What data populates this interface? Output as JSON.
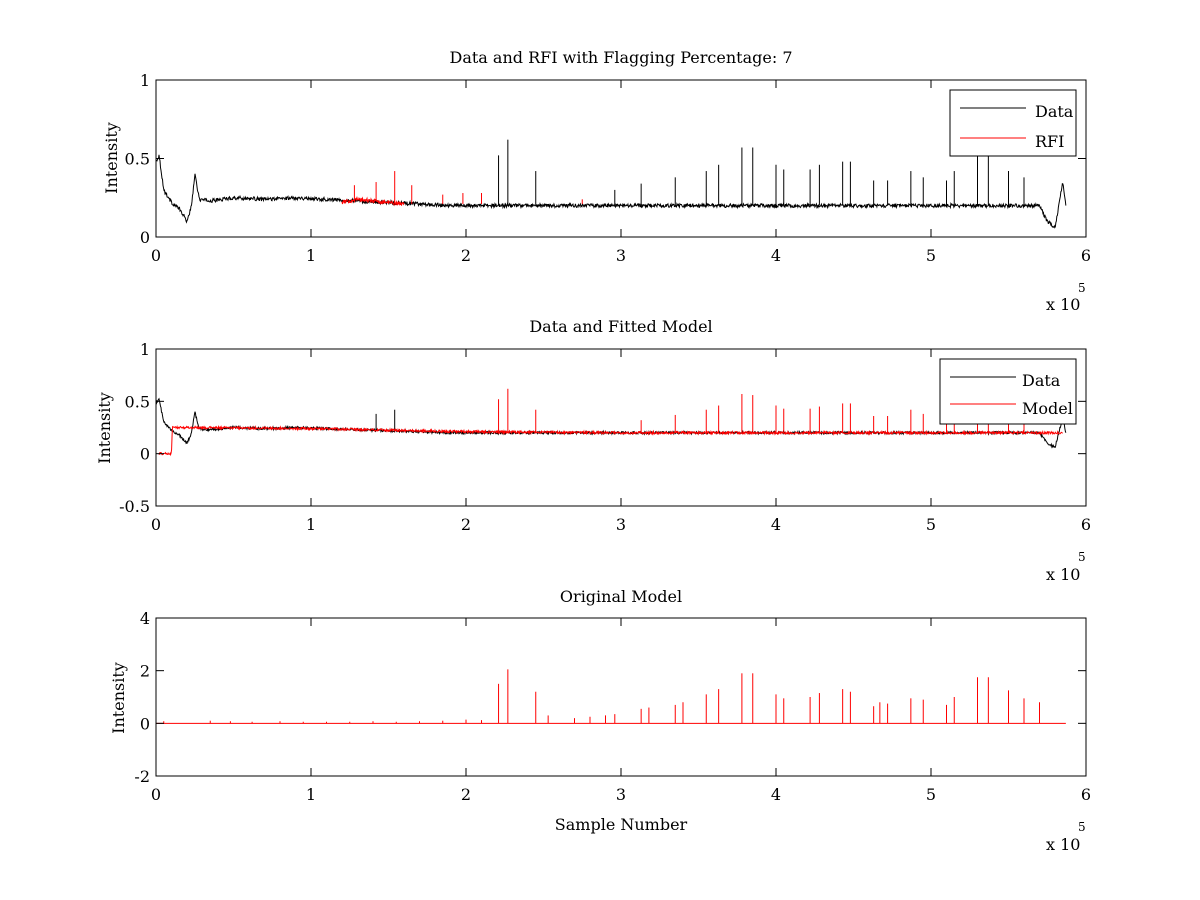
{
  "chart_data": [
    {
      "type": "line",
      "title": "Data and RFI with Flagging Percentage: 7",
      "xlabel": "",
      "ylabel": "Intensity",
      "xlim": [
        0,
        600000
      ],
      "ylim": [
        0,
        1
      ],
      "x_ticks": [
        0,
        100000,
        200000,
        300000,
        400000,
        500000,
        600000
      ],
      "x_tick_labels": [
        "0",
        "1",
        "2",
        "3",
        "4",
        "5",
        "6"
      ],
      "x_exponent": {
        "base": "x 10",
        "power": "5"
      },
      "y_ticks": [
        0,
        0.5,
        1
      ],
      "y_tick_labels": [
        "0",
        "0.5",
        "1"
      ],
      "grid": false,
      "legend_position": "top-right",
      "series": [
        {
          "name": "Data",
          "color": "#000000",
          "x": [
            0,
            2000,
            5000,
            10000,
            15000,
            20000,
            23000,
            25000,
            28000,
            35000,
            50000,
            70000,
            90000,
            110000,
            130000,
            150000,
            170000,
            190000,
            210000,
            250000,
            300000,
            350000,
            400000,
            450000,
            500000,
            550000,
            570000,
            575000,
            580000,
            585000,
            587000
          ],
          "values": [
            0.48,
            0.52,
            0.3,
            0.22,
            0.18,
            0.1,
            0.2,
            0.4,
            0.24,
            0.23,
            0.25,
            0.24,
            0.25,
            0.24,
            0.23,
            0.22,
            0.21,
            0.2,
            0.2,
            0.2,
            0.2,
            0.2,
            0.2,
            0.2,
            0.2,
            0.2,
            0.2,
            0.1,
            0.06,
            0.35,
            0.2
          ],
          "spikes": [
            {
              "x": 221000,
              "y": 0.52
            },
            {
              "x": 227000,
              "y": 0.62
            },
            {
              "x": 245000,
              "y": 0.42
            },
            {
              "x": 296000,
              "y": 0.3
            },
            {
              "x": 313000,
              "y": 0.34
            },
            {
              "x": 335000,
              "y": 0.38
            },
            {
              "x": 355000,
              "y": 0.42
            },
            {
              "x": 363000,
              "y": 0.46
            },
            {
              "x": 378000,
              "y": 0.57
            },
            {
              "x": 385000,
              "y": 0.57
            },
            {
              "x": 400000,
              "y": 0.46
            },
            {
              "x": 405000,
              "y": 0.43
            },
            {
              "x": 422000,
              "y": 0.43
            },
            {
              "x": 428000,
              "y": 0.46
            },
            {
              "x": 443000,
              "y": 0.48
            },
            {
              "x": 448000,
              "y": 0.48
            },
            {
              "x": 463000,
              "y": 0.36
            },
            {
              "x": 472000,
              "y": 0.36
            },
            {
              "x": 487000,
              "y": 0.42
            },
            {
              "x": 495000,
              "y": 0.38
            },
            {
              "x": 510000,
              "y": 0.36
            },
            {
              "x": 515000,
              "y": 0.42
            },
            {
              "x": 530000,
              "y": 0.52
            },
            {
              "x": 537000,
              "y": 0.52
            },
            {
              "x": 550000,
              "y": 0.42
            },
            {
              "x": 560000,
              "y": 0.38
            }
          ]
        },
        {
          "name": "RFI",
          "color": "#ff0000",
          "x": [
            120000,
            130000,
            140000,
            150000,
            160000
          ],
          "values": [
            0.22,
            0.24,
            0.23,
            0.22,
            0.21
          ],
          "spikes": [
            {
              "x": 128000,
              "y": 0.33
            },
            {
              "x": 142000,
              "y": 0.35
            },
            {
              "x": 154000,
              "y": 0.42
            },
            {
              "x": 165000,
              "y": 0.33
            },
            {
              "x": 185000,
              "y": 0.27
            },
            {
              "x": 198000,
              "y": 0.28
            },
            {
              "x": 210000,
              "y": 0.28
            },
            {
              "x": 275000,
              "y": 0.24
            }
          ]
        }
      ]
    },
    {
      "type": "line",
      "title": "Data and Fitted Model",
      "xlabel": "",
      "ylabel": "Intensity",
      "xlim": [
        0,
        600000
      ],
      "ylim": [
        -0.5,
        1
      ],
      "x_ticks": [
        0,
        100000,
        200000,
        300000,
        400000,
        500000,
        600000
      ],
      "x_tick_labels": [
        "0",
        "1",
        "2",
        "3",
        "4",
        "5",
        "6"
      ],
      "x_exponent": {
        "base": "x 10",
        "power": "5"
      },
      "y_ticks": [
        -0.5,
        0,
        0.5,
        1
      ],
      "y_tick_labels": [
        "-0.5",
        "0",
        "0.5",
        "1"
      ],
      "grid": false,
      "legend_position": "top-right",
      "series": [
        {
          "name": "Data",
          "color": "#000000",
          "x": [
            0,
            2000,
            5000,
            10000,
            15000,
            20000,
            23000,
            25000,
            28000,
            35000,
            50000,
            70000,
            90000,
            110000,
            130000,
            150000,
            170000,
            190000,
            210000,
            250000,
            300000,
            350000,
            400000,
            450000,
            500000,
            550000,
            570000,
            575000,
            580000,
            585000,
            587000
          ],
          "values": [
            0.48,
            0.52,
            0.3,
            0.22,
            0.18,
            0.1,
            0.2,
            0.4,
            0.24,
            0.23,
            0.25,
            0.24,
            0.25,
            0.24,
            0.23,
            0.22,
            0.21,
            0.2,
            0.2,
            0.2,
            0.2,
            0.2,
            0.2,
            0.2,
            0.2,
            0.2,
            0.2,
            0.1,
            0.06,
            0.35,
            0.2
          ],
          "spikes": [
            {
              "x": 142000,
              "y": 0.38
            },
            {
              "x": 154000,
              "y": 0.42
            }
          ]
        },
        {
          "name": "Model",
          "color": "#ff0000",
          "x": [
            2000,
            8000,
            10000,
            10500,
            20000,
            100000,
            200000,
            300000,
            400000,
            500000,
            585000
          ],
          "values": [
            0.0,
            0.0,
            0.0,
            0.25,
            0.25,
            0.24,
            0.21,
            0.2,
            0.2,
            0.2,
            0.2
          ],
          "spikes": [
            {
              "x": 221000,
              "y": 0.52
            },
            {
              "x": 227000,
              "y": 0.62
            },
            {
              "x": 245000,
              "y": 0.42
            },
            {
              "x": 313000,
              "y": 0.32
            },
            {
              "x": 335000,
              "y": 0.37
            },
            {
              "x": 355000,
              "y": 0.42
            },
            {
              "x": 363000,
              "y": 0.46
            },
            {
              "x": 378000,
              "y": 0.57
            },
            {
              "x": 385000,
              "y": 0.56
            },
            {
              "x": 400000,
              "y": 0.46
            },
            {
              "x": 405000,
              "y": 0.43
            },
            {
              "x": 422000,
              "y": 0.43
            },
            {
              "x": 428000,
              "y": 0.45
            },
            {
              "x": 443000,
              "y": 0.48
            },
            {
              "x": 448000,
              "y": 0.48
            },
            {
              "x": 463000,
              "y": 0.36
            },
            {
              "x": 472000,
              "y": 0.36
            },
            {
              "x": 487000,
              "y": 0.42
            },
            {
              "x": 495000,
              "y": 0.38
            },
            {
              "x": 510000,
              "y": 0.36
            },
            {
              "x": 515000,
              "y": 0.4
            },
            {
              "x": 530000,
              "y": 0.5
            },
            {
              "x": 537000,
              "y": 0.52
            },
            {
              "x": 550000,
              "y": 0.4
            },
            {
              "x": 560000,
              "y": 0.36
            }
          ]
        }
      ]
    },
    {
      "type": "line",
      "title": "Original Model",
      "xlabel": "Sample Number",
      "ylabel": "Intensity",
      "xlim": [
        0,
        600000
      ],
      "ylim": [
        -2,
        4
      ],
      "x_ticks": [
        0,
        100000,
        200000,
        300000,
        400000,
        500000,
        600000
      ],
      "x_tick_labels": [
        "0",
        "1",
        "2",
        "3",
        "4",
        "5",
        "6"
      ],
      "x_exponent": {
        "base": "x 10",
        "power": "5"
      },
      "y_ticks": [
        -2,
        0,
        2,
        4
      ],
      "y_tick_labels": [
        "-2",
        "0",
        "2",
        "4"
      ],
      "grid": false,
      "legend_position": "none",
      "series": [
        {
          "color": "#ff0000",
          "x": [
            0,
            587000
          ],
          "values": [
            0,
            0
          ],
          "spikes": [
            {
              "x": 5000,
              "y": 0.08
            },
            {
              "x": 35000,
              "y": 0.1
            },
            {
              "x": 48000,
              "y": 0.08
            },
            {
              "x": 62000,
              "y": 0.06
            },
            {
              "x": 80000,
              "y": 0.08
            },
            {
              "x": 95000,
              "y": 0.06
            },
            {
              "x": 110000,
              "y": 0.06
            },
            {
              "x": 125000,
              "y": 0.06
            },
            {
              "x": 140000,
              "y": 0.08
            },
            {
              "x": 155000,
              "y": 0.06
            },
            {
              "x": 170000,
              "y": 0.08
            },
            {
              "x": 185000,
              "y": 0.1
            },
            {
              "x": 200000,
              "y": 0.14
            },
            {
              "x": 210000,
              "y": 0.12
            },
            {
              "x": 221000,
              "y": 1.5
            },
            {
              "x": 227000,
              "y": 2.05
            },
            {
              "x": 245000,
              "y": 1.2
            },
            {
              "x": 253000,
              "y": 0.3
            },
            {
              "x": 270000,
              "y": 0.2
            },
            {
              "x": 280000,
              "y": 0.25
            },
            {
              "x": 290000,
              "y": 0.3
            },
            {
              "x": 296000,
              "y": 0.35
            },
            {
              "x": 313000,
              "y": 0.55
            },
            {
              "x": 318000,
              "y": 0.6
            },
            {
              "x": 335000,
              "y": 0.7
            },
            {
              "x": 340000,
              "y": 0.8
            },
            {
              "x": 355000,
              "y": 1.1
            },
            {
              "x": 363000,
              "y": 1.3
            },
            {
              "x": 378000,
              "y": 1.9
            },
            {
              "x": 385000,
              "y": 1.9
            },
            {
              "x": 400000,
              "y": 1.1
            },
            {
              "x": 405000,
              "y": 0.95
            },
            {
              "x": 422000,
              "y": 1.0
            },
            {
              "x": 428000,
              "y": 1.15
            },
            {
              "x": 443000,
              "y": 1.3
            },
            {
              "x": 448000,
              "y": 1.2
            },
            {
              "x": 463000,
              "y": 0.65
            },
            {
              "x": 467000,
              "y": 0.8
            },
            {
              "x": 472000,
              "y": 0.75
            },
            {
              "x": 487000,
              "y": 0.95
            },
            {
              "x": 495000,
              "y": 0.9
            },
            {
              "x": 510000,
              "y": 0.7
            },
            {
              "x": 515000,
              "y": 1.0
            },
            {
              "x": 530000,
              "y": 1.75
            },
            {
              "x": 537000,
              "y": 1.75
            },
            {
              "x": 550000,
              "y": 1.25
            },
            {
              "x": 560000,
              "y": 0.95
            },
            {
              "x": 570000,
              "y": 0.8
            }
          ]
        }
      ]
    }
  ]
}
